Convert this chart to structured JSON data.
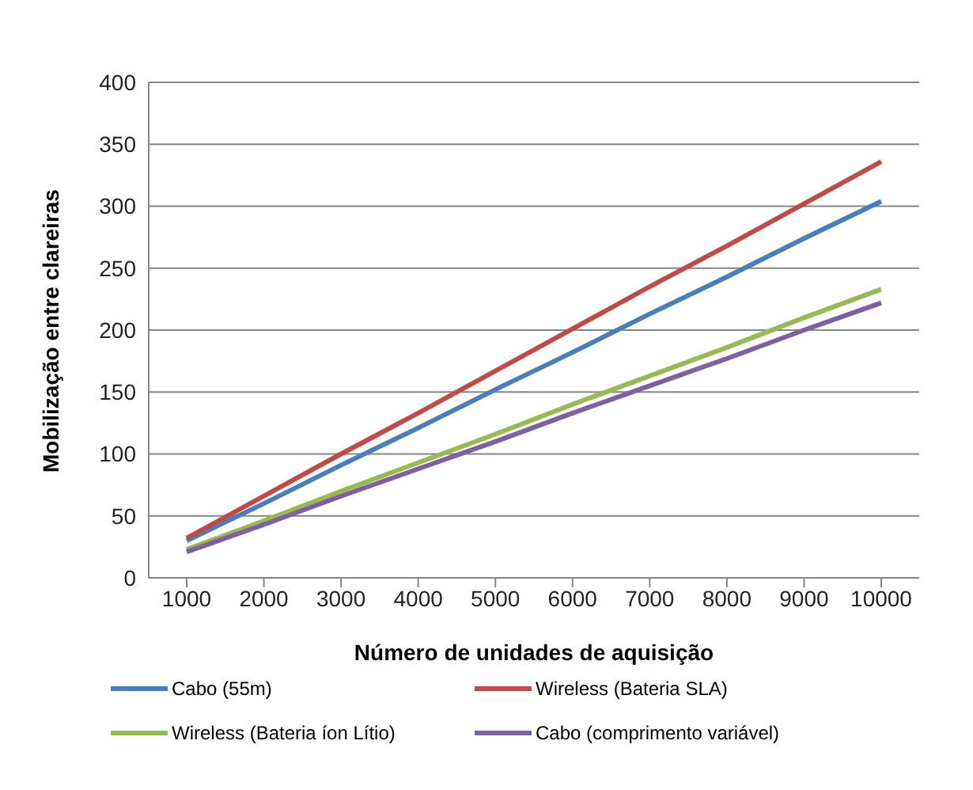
{
  "chart_data": {
    "type": "line",
    "xlabel": "Número de unidades de aquisição",
    "ylabel": "Mobilização entre clareiras",
    "categories": [
      "1000",
      "2000",
      "3000",
      "4000",
      "5000",
      "6000",
      "7000",
      "8000",
      "9000",
      "10000"
    ],
    "series": [
      {
        "name": "Cabo (55m)",
        "color": "#4a7ebb",
        "values": [
          30,
          60,
          91,
          121,
          152,
          182,
          213,
          243,
          274,
          304
        ]
      },
      {
        "name": "Wireless (Bateria SLA)",
        "color": "#be4b48",
        "values": [
          32,
          66,
          100,
          133,
          167,
          201,
          235,
          268,
          302,
          336
        ]
      },
      {
        "name": "Wireless (Bateria íon Lítio)",
        "color": "#98b954",
        "values": [
          23,
          46,
          70,
          93,
          116,
          140,
          163,
          186,
          210,
          233
        ]
      },
      {
        "name": "Cabo (comprimento variável)",
        "color": "#7d60a0",
        "values": [
          21,
          43,
          66,
          88,
          110,
          133,
          155,
          177,
          200,
          222
        ]
      }
    ],
    "ylim": [
      0,
      400
    ],
    "yticks": [
      0,
      50,
      100,
      150,
      200,
      250,
      300,
      350,
      400
    ],
    "grid": "y",
    "legend": "bottom",
    "marker": "none",
    "line_style": "solid"
  }
}
